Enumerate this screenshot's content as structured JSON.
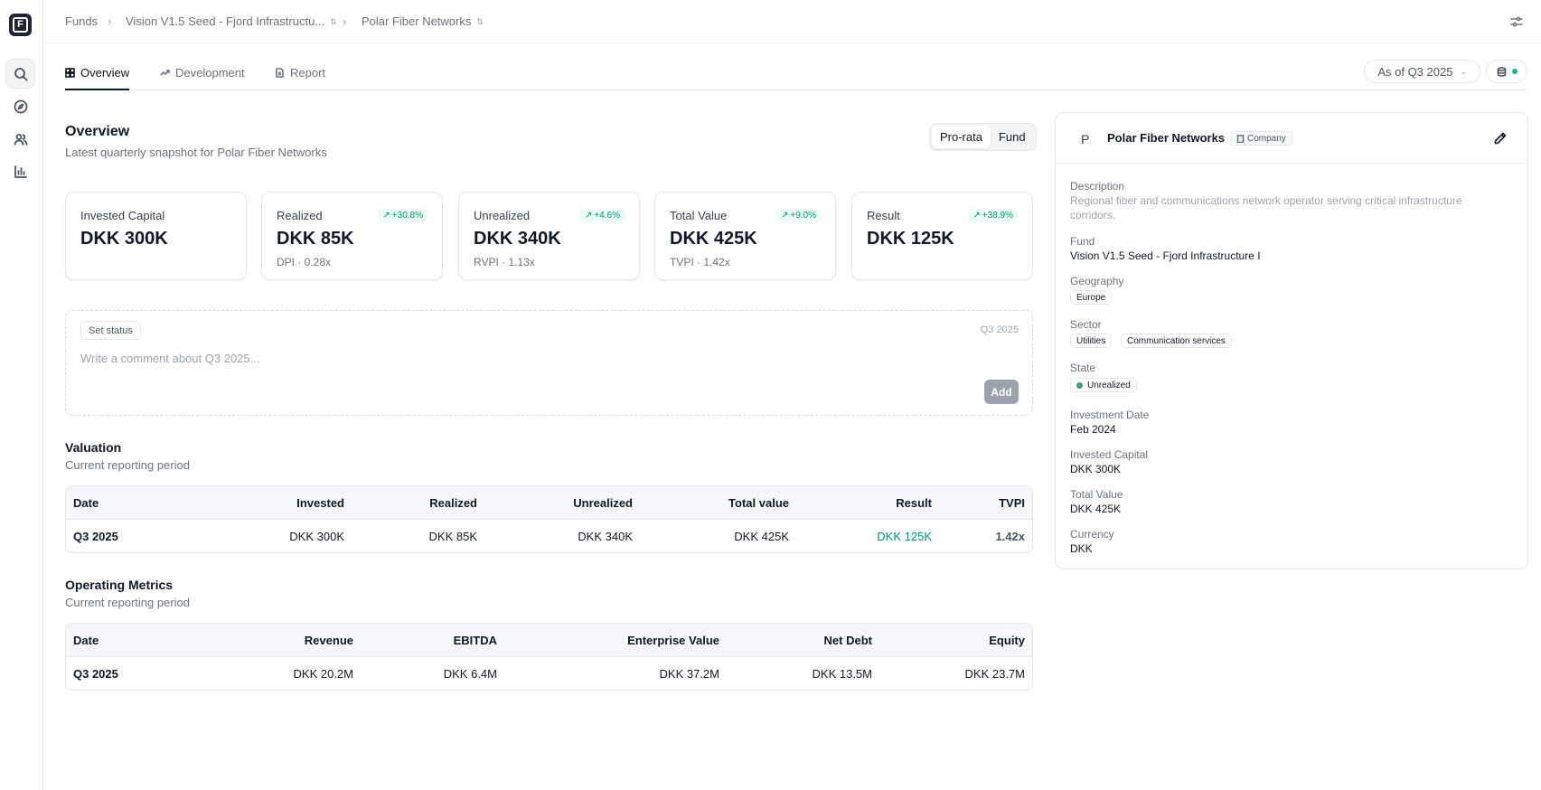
{
  "app": {
    "logo_letter": "F"
  },
  "breadcrumb": {
    "funds": "Funds",
    "fund": "Vision V1.5 Seed - Fjord Infrastructu...",
    "company": "Polar Fiber Networks"
  },
  "tabs": [
    {
      "label": "Overview",
      "icon": "grid-icon",
      "active": true
    },
    {
      "label": "Development",
      "icon": "trend-icon",
      "active": false
    },
    {
      "label": "Report",
      "icon": "file-icon",
      "active": false
    }
  ],
  "asof": {
    "label": "As of Q3 2025"
  },
  "overview": {
    "title": "Overview",
    "subtitle": "Latest quarterly snapshot for Polar Fiber Networks",
    "toggle": {
      "prorata": "Pro-rata",
      "fund": "Fund",
      "selected": "Pro-rata"
    }
  },
  "cards": [
    {
      "label": "Invested Capital",
      "value": "DKK 300K",
      "sub": "",
      "badge": ""
    },
    {
      "label": "Realized",
      "value": "DKK 85K",
      "sub": "DPI · 0.28x",
      "badge": "+30.8%"
    },
    {
      "label": "Unrealized",
      "value": "DKK 340K",
      "sub": "RVPI · 1.13x",
      "badge": "+4.6%"
    },
    {
      "label": "Total Value",
      "value": "DKK 425K",
      "sub": "TVPI · 1.42x",
      "badge": "+9.0%"
    },
    {
      "label": "Result",
      "value": "DKK 125K",
      "sub": "",
      "badge": "+38.9%"
    }
  ],
  "comment": {
    "set_status": "Set status",
    "quarter": "Q3 2025",
    "placeholder": "Write a comment about Q3 2025...",
    "add": "Add"
  },
  "valuation": {
    "title": "Valuation",
    "subtitle": "Current reporting period",
    "headers": [
      "Date",
      "Invested",
      "Realized",
      "Unrealized",
      "Total value",
      "Result",
      "TVPI"
    ],
    "row": [
      "Q3 2025",
      "DKK 300K",
      "DKK 85K",
      "DKK 340K",
      "DKK 425K",
      "DKK 125K",
      "1.42x"
    ]
  },
  "operating": {
    "title": "Operating Metrics",
    "subtitle": "Current reporting period",
    "headers": [
      "Date",
      "Revenue",
      "EBITDA",
      "Enterprise Value",
      "Net Debt",
      "Equity"
    ],
    "row": [
      "Q3 2025",
      "DKK 20.2M",
      "DKK 6.4M",
      "DKK 37.2M",
      "DKK 13.5M",
      "DKK 23.7M"
    ]
  },
  "panel": {
    "avatar": "P",
    "name": "Polar Fiber Networks",
    "type": "Company",
    "description_label": "Description",
    "description": "Regional fiber and communications network operator serving critical infrastructure corridors.",
    "fund_label": "Fund",
    "fund": "Vision V1.5 Seed - Fjord Infrastructure I",
    "geography_label": "Geography",
    "geography": "Europe",
    "sector_label": "Sector",
    "sectors": [
      "Utilities",
      "Communication services"
    ],
    "state_label": "State",
    "state": "Unrealized",
    "investment_date_label": "Investment Date",
    "investment_date": "Feb 2024",
    "invested_capital_label": "Invested Capital",
    "invested_capital": "DKK 300K",
    "total_value_label": "Total Value",
    "total_value": "DKK 425K",
    "currency_label": "Currency",
    "currency": "DKK"
  },
  "colors": {
    "accent_green": "#059669",
    "state_dot": "#3f9a7d",
    "logo_bg": "#1f2430"
  }
}
